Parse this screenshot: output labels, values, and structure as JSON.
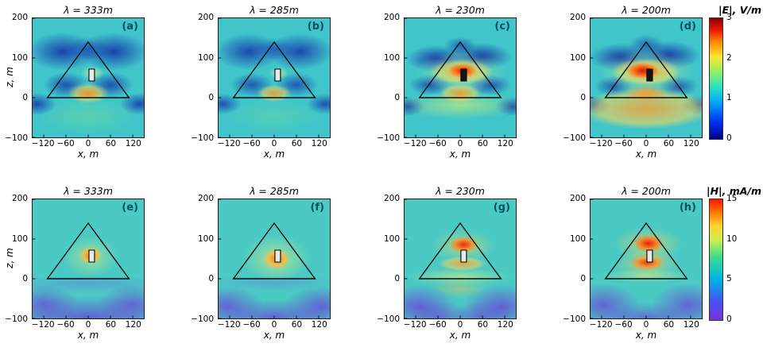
{
  "figure": {
    "xlabel": "x, m",
    "ylabel": "z, m",
    "x_ticks": [
      "−120",
      "−60",
      "0",
      "60",
      "120"
    ],
    "y_ticks": [
      "200",
      "100",
      "0",
      "−100"
    ],
    "rows": [
      {
        "colorbar": {
          "label": "|E|, V/m",
          "ticks": [
            "3",
            "2",
            "1",
            "0"
          ]
        },
        "panels": [
          {
            "id": "a",
            "title": "λ = 333m",
            "tag": "(a)"
          },
          {
            "id": "b",
            "title": "λ = 285m",
            "tag": "(b)"
          },
          {
            "id": "c",
            "title": "λ = 230m",
            "tag": "(c)"
          },
          {
            "id": "d",
            "title": "λ = 200m",
            "tag": "(d)"
          }
        ]
      },
      {
        "colorbar": {
          "label": "|H|, mA/m",
          "ticks": [
            "15",
            "10",
            "5",
            "0"
          ]
        },
        "panels": [
          {
            "id": "e",
            "title": "λ = 333m",
            "tag": "(e)"
          },
          {
            "id": "f",
            "title": "λ = 285m",
            "tag": "(f)"
          },
          {
            "id": "g",
            "title": "λ = 230m",
            "tag": "(g)"
          },
          {
            "id": "h",
            "title": "λ = 200m",
            "tag": "(h)"
          }
        ]
      }
    ]
  },
  "chart_data": {
    "type": "heatmap",
    "grid": "2 rows x 4 columns",
    "x_axis": {
      "label": "x, m",
      "range": [
        -150,
        150
      ],
      "ticks": [
        -120,
        -60,
        0,
        60,
        120
      ]
    },
    "y_axis": {
      "label": "z, m",
      "range": [
        -100,
        200
      ],
      "ticks": [
        200,
        100,
        0,
        -100
      ]
    },
    "overlay": {
      "pyramid_outline": {
        "apex_xz": [
          0,
          140
        ],
        "base_xz": [
          [
            -110,
            0
          ],
          [
            110,
            0
          ]
        ]
      },
      "chamber_rect": {
        "x_range": [
          2,
          17
        ],
        "z_range": [
          42,
          72
        ]
      }
    },
    "rows": [
      {
        "quantity": "|E|, V/m",
        "colormap": "jet",
        "scale": [
          0,
          3
        ],
        "colorbar_ticks": [
          0,
          1,
          2,
          3
        ],
        "colorbar_label": "|E|, V/m",
        "panels": [
          {
            "label": "(a)",
            "wavelength_m": 333,
            "features": "weak orange maximum at base center; dark-blue minima along upper faces, mid-faces and base corners; cyan background"
          },
          {
            "label": "(b)",
            "wavelength_m": 285,
            "features": "similar to (a) with weaker base-center maximum and slightly lighter blue minima"
          },
          {
            "label": "(c)",
            "wavelength_m": 230,
            "features": "strong red-orange maximum at chamber with yellow halo; orange spot at base center; yellow-green enhancement below base; blue minima along faces"
          },
          {
            "label": "(d)",
            "wavelength_m": 200,
            "features": "strongest red maximum at chamber; broad orange region below base; blue minima along upper faces"
          }
        ]
      },
      {
        "quantity": "|H|, mA/m",
        "colormap": "rainbow",
        "scale": [
          0,
          15
        ],
        "colorbar_ticks": [
          0,
          5,
          10,
          15
        ],
        "colorbar_label": "|H|, mA/m",
        "panels": [
          {
            "label": "(e)",
            "wavelength_m": 333,
            "features": "orange maximum at chamber with yellow-green halo; violet minima in ground below base"
          },
          {
            "label": "(f)",
            "wavelength_m": 285,
            "features": "larger orange maximum at chamber; violet lobes in ground at both sides"
          },
          {
            "label": "(g)",
            "wavelength_m": 230,
            "features": "red maximum above chamber plus orange band below; yellow-green band at base; violet lobes in ground"
          },
          {
            "label": "(h)",
            "wavelength_m": 200,
            "features": "two red maxima, above and below chamber; yellow band at base; violet lobes in ground"
          }
        ]
      }
    ]
  }
}
